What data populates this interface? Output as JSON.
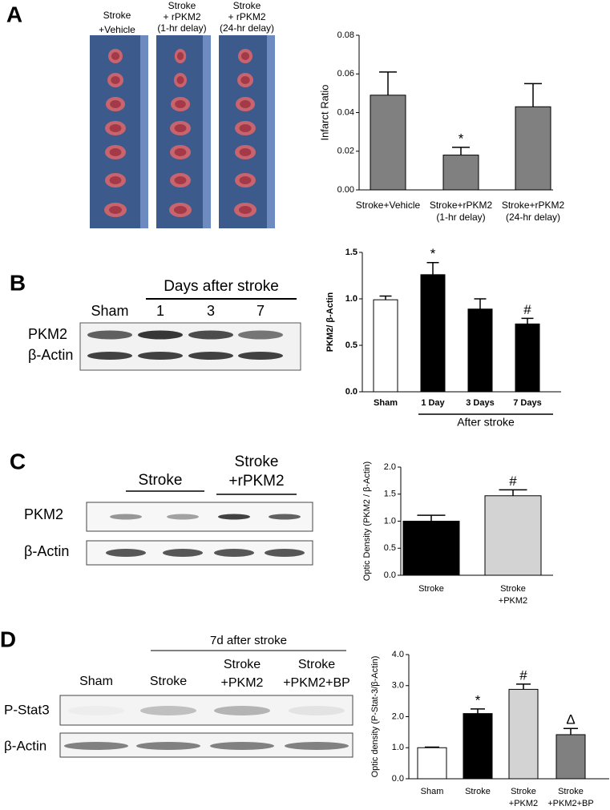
{
  "panel_labels": [
    "A",
    "B",
    "C",
    "D"
  ],
  "panel_a": {
    "groups": [
      [
        "Stroke",
        "+Vehicle"
      ],
      [
        "Stroke",
        "+ rPKM2",
        "(1-hr delay)"
      ],
      [
        "Stroke",
        "+ rPKM2",
        "(24-hr delay)"
      ]
    ]
  },
  "panel_b": {
    "header": "Days after stroke",
    "lanes": [
      "Sham",
      "1",
      "3",
      "7"
    ],
    "rows": [
      "PKM2",
      "β-Actin"
    ]
  },
  "panel_c": {
    "groups": [
      [
        "Stroke"
      ],
      [
        "Stroke",
        "+rPKM2"
      ]
    ],
    "rows": [
      "PKM2",
      "β-Actin"
    ]
  },
  "panel_d": {
    "header": "7d after stroke",
    "lanes": [
      [
        "Sham"
      ],
      [
        "Stroke"
      ],
      [
        "Stroke",
        "+PKM2"
      ],
      [
        "Stroke",
        "+PKM2+BP"
      ]
    ],
    "rows": [
      "P-Stat3",
      "β-Actin"
    ]
  },
  "chart_data": [
    {
      "type": "bar",
      "ylabel": "Infarct Ratio",
      "categories": [
        [
          "Stroke+Vehicle"
        ],
        [
          "Stroke+rPKM2",
          "(1-hr delay)"
        ],
        [
          "Stroke+rPKM2",
          "(24-hr delay)"
        ]
      ],
      "values": [
        0.049,
        0.018,
        0.043
      ],
      "errors": [
        0.012,
        0.004,
        0.012
      ],
      "colors": [
        "#808080",
        "#808080",
        "#808080"
      ],
      "annotations": [
        null,
        "*",
        null
      ],
      "ylim": [
        0,
        0.08
      ],
      "yticks": [
        {
          "value": 0,
          "label": "0.00"
        },
        {
          "value": 0.02,
          "label": "0.02"
        },
        {
          "value": 0.04,
          "label": "0.04"
        },
        {
          "value": 0.06,
          "label": "0.06"
        },
        {
          "value": 0.08,
          "label": "0.08"
        }
      ]
    },
    {
      "type": "bar",
      "ylabel": "PKM2/ β-Actin",
      "categories": [
        [
          "Sham"
        ],
        [
          "1 Day"
        ],
        [
          "3 Days"
        ],
        [
          "7 Days"
        ]
      ],
      "values": [
        0.99,
        1.26,
        0.89,
        0.73
      ],
      "errors": [
        0.04,
        0.13,
        0.11,
        0.06
      ],
      "colors": [
        "#ffffff",
        "#000000",
        "#000000",
        "#000000"
      ],
      "annotations": [
        null,
        "*",
        null,
        "#"
      ],
      "group_label": "After stroke",
      "ylim": [
        0,
        1.5
      ],
      "yticks": [
        {
          "value": 0,
          "label": "0.0"
        },
        {
          "value": 0.5,
          "label": "0.5"
        },
        {
          "value": 1,
          "label": "1.0"
        },
        {
          "value": 1.5,
          "label": "1.5"
        }
      ]
    },
    {
      "type": "bar",
      "ylabel": "Optic Density (PKM2 / β-Actin)",
      "categories": [
        [
          "Stroke"
        ],
        [
          "Stroke",
          "+PKM2"
        ]
      ],
      "values": [
        1.0,
        1.47
      ],
      "errors": [
        0.11,
        0.11
      ],
      "colors": [
        "#000000",
        "#d3d3d3"
      ],
      "annotations": [
        null,
        "#"
      ],
      "ylim": [
        0,
        2
      ],
      "yticks": [
        {
          "value": 0,
          "label": "0.0"
        },
        {
          "value": 0.5,
          "label": "0.5"
        },
        {
          "value": 1,
          "label": "1.0"
        },
        {
          "value": 1.5,
          "label": "1.5"
        },
        {
          "value": 2,
          "label": "2.0"
        }
      ]
    },
    {
      "type": "bar",
      "ylabel": "Optic density (P-Stat-3/β-Actin)",
      "categories": [
        [
          "Sham"
        ],
        [
          "Stroke"
        ],
        [
          "Stroke",
          "+PKM2"
        ],
        [
          "Stroke",
          "+PKM2+BP"
        ]
      ],
      "values": [
        1.0,
        2.1,
        2.88,
        1.42
      ],
      "errors": [
        0.02,
        0.15,
        0.17,
        0.2
      ],
      "colors": [
        "#ffffff",
        "#000000",
        "#d3d3d3",
        "#808080"
      ],
      "annotations": [
        null,
        "*",
        "#",
        "Δ"
      ],
      "ylim": [
        0,
        4
      ],
      "yticks": [
        {
          "value": 0,
          "label": "0.0"
        },
        {
          "value": 1,
          "label": "1.0"
        },
        {
          "value": 2,
          "label": "2.0"
        },
        {
          "value": 3,
          "label": "3.0"
        },
        {
          "value": 4,
          "label": "4.0"
        }
      ]
    }
  ]
}
